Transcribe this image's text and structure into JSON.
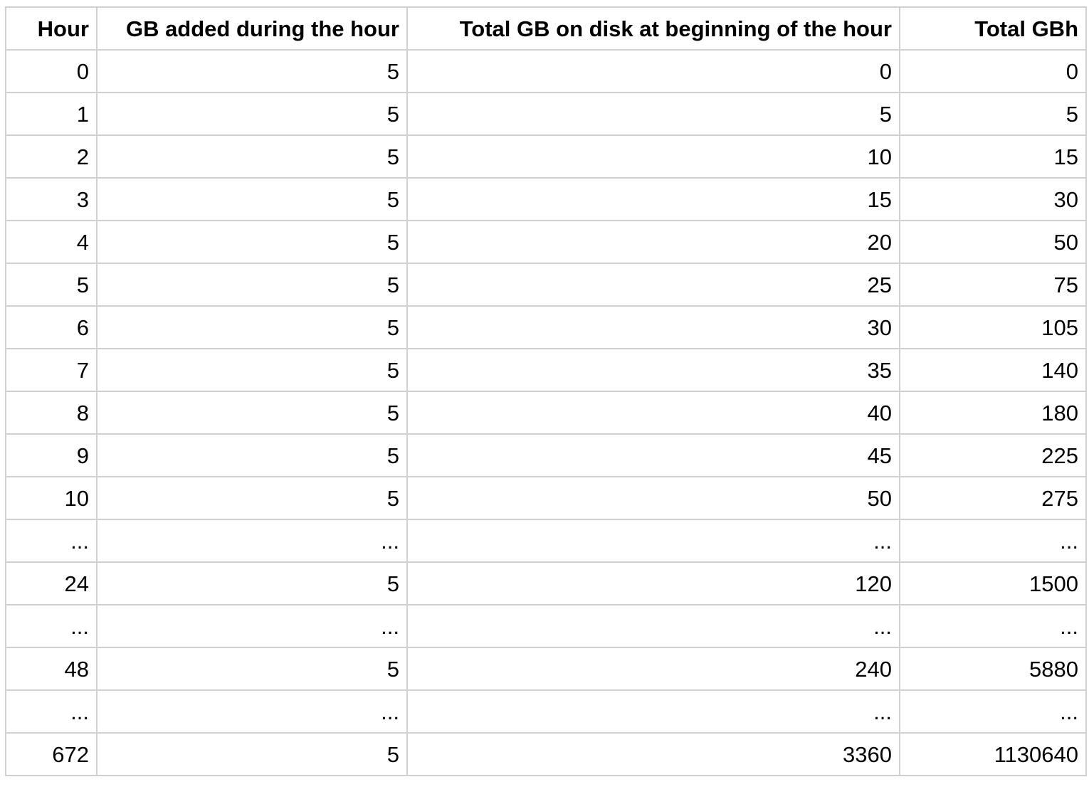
{
  "table": {
    "headers": [
      "Hour",
      "GB added during the hour",
      "Total GB on disk at beginning of the hour",
      "Total GBh"
    ],
    "rows": [
      [
        "0",
        "5",
        "0",
        "0"
      ],
      [
        "1",
        "5",
        "5",
        "5"
      ],
      [
        "2",
        "5",
        "10",
        "15"
      ],
      [
        "3",
        "5",
        "15",
        "30"
      ],
      [
        "4",
        "5",
        "20",
        "50"
      ],
      [
        "5",
        "5",
        "25",
        "75"
      ],
      [
        "6",
        "5",
        "30",
        "105"
      ],
      [
        "7",
        "5",
        "35",
        "140"
      ],
      [
        "8",
        "5",
        "40",
        "180"
      ],
      [
        "9",
        "5",
        "45",
        "225"
      ],
      [
        "10",
        "5",
        "50",
        "275"
      ],
      [
        "...",
        "...",
        "...",
        "..."
      ],
      [
        "24",
        "5",
        "120",
        "1500"
      ],
      [
        "...",
        "...",
        "...",
        "..."
      ],
      [
        "48",
        "5",
        "240",
        "5880"
      ],
      [
        "...",
        "...",
        "...",
        "..."
      ],
      [
        "672",
        "5",
        "3360",
        "1130640"
      ]
    ]
  }
}
